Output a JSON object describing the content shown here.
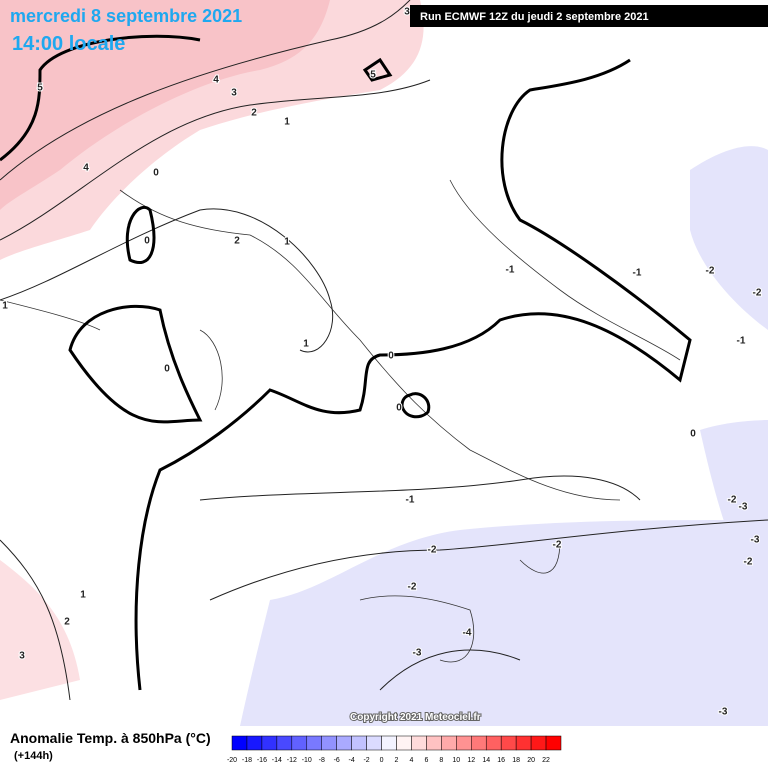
{
  "header": {
    "title": "mercredi 8 septembre 2021",
    "time": "14:00 locale",
    "run": "Run ECMWF 12Z du jeudi 2 septembre 2021"
  },
  "copyright": "Copyright 2021 Meteociel.fr",
  "legend": {
    "title": "Anomalie Temp. à 850hPa (°C)",
    "lead": "(+144h)",
    "ticks": [
      -20,
      -18,
      -16,
      -14,
      -12,
      -10,
      -8,
      -6,
      -4,
      -2,
      0,
      2,
      4,
      6,
      8,
      10,
      12,
      14,
      16,
      18,
      20,
      22
    ]
  },
  "contour_labels": [
    5,
    4,
    3,
    2,
    1,
    5,
    3,
    4,
    0,
    0,
    2,
    1,
    0,
    1,
    0,
    0,
    -1,
    -1,
    -1,
    -2,
    -2,
    -1,
    0,
    -2,
    -3,
    -3,
    -2,
    -2,
    -2,
    -2,
    -4,
    -3,
    -3,
    1,
    2,
    3,
    1
  ]
}
